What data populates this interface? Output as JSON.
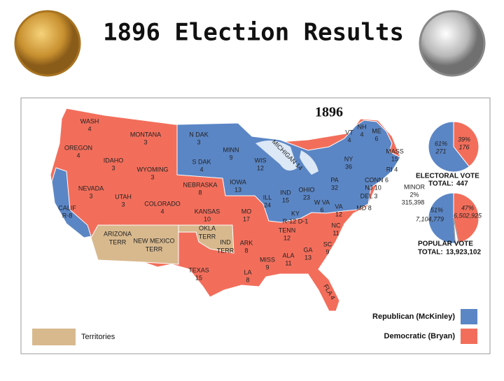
{
  "header": {
    "title": "1896 Election Results"
  },
  "map": {
    "title": "1896",
    "states": [
      {
        "name": "WASH",
        "votes": "4"
      },
      {
        "name": "MONTANA",
        "votes": "3"
      },
      {
        "name": "N DAK",
        "votes": "3"
      },
      {
        "name": "MINN",
        "votes": "9"
      },
      {
        "name": "OREGON",
        "votes": "4"
      },
      {
        "name": "IDAHO",
        "votes": "3"
      },
      {
        "name": "WYOMING",
        "votes": "3"
      },
      {
        "name": "S DAK",
        "votes": "4"
      },
      {
        "name": "WIS",
        "votes": "12"
      },
      {
        "name": "IOWA",
        "votes": "13"
      },
      {
        "name": "NEBRASKA",
        "votes": "8"
      },
      {
        "name": "NEVADA",
        "votes": "3"
      },
      {
        "name": "UTAH",
        "votes": "3"
      },
      {
        "name": "COLORADO",
        "votes": "4"
      },
      {
        "name": "CALIF",
        "votes": "R-8"
      },
      {
        "name": "KANSAS",
        "votes": "10"
      },
      {
        "name": "MO",
        "votes": "17"
      },
      {
        "name": "ILL",
        "votes": "24"
      },
      {
        "name": "IND",
        "votes": "15"
      },
      {
        "name": "OHIO",
        "votes": "23"
      },
      {
        "name": "PA",
        "votes": "32"
      },
      {
        "name": "NY",
        "votes": "36"
      },
      {
        "name": "VT",
        "votes": "4"
      },
      {
        "name": "NH",
        "votes": "4"
      },
      {
        "name": "ME",
        "votes": "6"
      },
      {
        "name": "MASS",
        "votes": "15"
      },
      {
        "name": "W VA",
        "votes": "6"
      },
      {
        "name": "VA",
        "votes": "12"
      },
      {
        "name": "KY",
        "votes": "R-12 D-1"
      },
      {
        "name": "TENN",
        "votes": "12"
      },
      {
        "name": "NC",
        "votes": "11"
      },
      {
        "name": "SC",
        "votes": "9"
      },
      {
        "name": "GA",
        "votes": "13"
      },
      {
        "name": "ALA",
        "votes": "11"
      },
      {
        "name": "MISS",
        "votes": "9"
      },
      {
        "name": "ARK",
        "votes": "8"
      },
      {
        "name": "LA",
        "votes": "8"
      },
      {
        "name": "TEXAS",
        "votes": "15"
      }
    ],
    "inline_states": [
      "RI 4",
      "CONN 6",
      "NJ 10",
      "DEL 3",
      "MD 8",
      "MICHIGAN 14",
      "FLA 4"
    ],
    "territories": [
      [
        "OKLA",
        "TERR"
      ],
      [
        "IND",
        "TERR"
      ],
      [
        "ARIZONA",
        "TERR"
      ],
      [
        "NEW MEXICO",
        "TERR"
      ]
    ]
  },
  "electoral_vote": {
    "title": "ELECTORAL VOTE",
    "total_label": "TOTAL:",
    "total": 447,
    "slices": [
      {
        "percent": "61%",
        "value": 271,
        "color": "#5b86c5"
      },
      {
        "percent": "39%",
        "value": 176,
        "color": "#f26e5b"
      }
    ]
  },
  "popular_vote": {
    "title": "POPULAR VOTE",
    "total_label": "TOTAL:",
    "total": {
      "value": 13923102,
      "label": "13,923,102"
    },
    "slices": [
      {
        "percent": "51%",
        "value": {
          "value": 7104779,
          "label": "7,104,779"
        },
        "color": "#5b86c5"
      },
      {
        "percent": "47%",
        "value": {
          "value": 6502925,
          "label": "6,502,925"
        },
        "color": "#f26e5b"
      },
      {
        "name": "MINOR",
        "percent": "2%",
        "value": {
          "value": 315398,
          "label": "315,398"
        },
        "color": "#ffffff"
      }
    ]
  },
  "legend": [
    {
      "label": "Republican (McKinley)",
      "color": "#5b86c5"
    },
    {
      "label": "Democratic (Bryan)",
      "color": "#f26e5b"
    },
    {
      "label": "Territories",
      "color": "#d8b98e"
    }
  ]
}
